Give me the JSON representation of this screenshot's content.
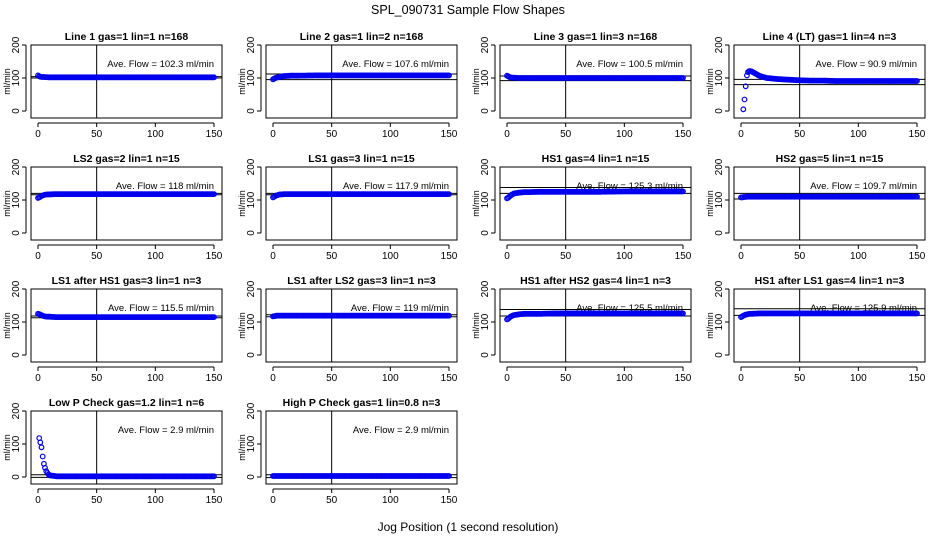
{
  "title": "SPL_090731  Sample Flow Shapes",
  "xlabel": "Jog Position (1 second resolution)",
  "colors": {
    "points": "#0000ee",
    "lines": "#000000"
  },
  "chart_data": [
    {
      "type": "scatter",
      "title": "Line 1 gas=1 lin=1 n=168",
      "annotation": "Ave. Flow =  102.3  ml/min",
      "ylabel": "ml/min",
      "xlim": [
        0,
        150
      ],
      "ylim": [
        0,
        200
      ],
      "xticks": [
        0,
        50,
        100,
        150
      ],
      "yticks": [
        0,
        100,
        200
      ],
      "mean": 102.3,
      "vline": 50,
      "band": [
        100,
        104
      ],
      "series": [
        {
          "name": "flow",
          "x": [
            0,
            1,
            2,
            3,
            4,
            5,
            10,
            20,
            40,
            60,
            80,
            100,
            120,
            140,
            150
          ],
          "y": [
            108,
            105,
            104,
            103,
            103,
            103,
            102,
            102,
            102,
            102,
            102,
            102,
            102,
            102,
            102
          ]
        }
      ]
    },
    {
      "type": "scatter",
      "title": "Line 2 gas=1 lin=2 n=168",
      "annotation": "Ave. Flow =  107.6  ml/min",
      "ylabel": "ml/min",
      "xlim": [
        0,
        150
      ],
      "ylim": [
        0,
        200
      ],
      "xticks": [
        0,
        50,
        100,
        150
      ],
      "yticks": [
        0,
        100,
        200
      ],
      "mean": 107.6,
      "vline": 50,
      "band": [
        95,
        112
      ],
      "series": [
        {
          "name": "flow",
          "x": [
            0,
            1,
            2,
            3,
            4,
            5,
            6,
            8,
            10,
            15,
            20,
            40,
            60,
            80,
            100,
            120,
            140,
            150
          ],
          "y": [
            96,
            98,
            100,
            101,
            102,
            103,
            104,
            105,
            106,
            107,
            107,
            108,
            108,
            108,
            108,
            108,
            108,
            108
          ]
        }
      ]
    },
    {
      "type": "scatter",
      "title": "Line 3 gas=1 lin=3 n=168",
      "annotation": "Ave. Flow =  100.5  ml/min",
      "ylabel": "ml/min",
      "xlim": [
        0,
        150
      ],
      "ylim": [
        0,
        200
      ],
      "xticks": [
        0,
        50,
        100,
        150
      ],
      "yticks": [
        0,
        100,
        200
      ],
      "mean": 100.5,
      "vline": 50,
      "band": [
        92,
        106
      ],
      "series": [
        {
          "name": "flow",
          "x": [
            0,
            1,
            2,
            3,
            4,
            5,
            10,
            20,
            40,
            60,
            80,
            100,
            120,
            140,
            150
          ],
          "y": [
            107,
            105,
            103,
            102,
            101,
            101,
            100,
            100,
            100,
            100,
            100,
            100,
            100,
            100,
            100
          ]
        }
      ]
    },
    {
      "type": "scatter",
      "title": "Line 4 (LT) gas=1 lin=4 n=3",
      "annotation": "Ave. Flow =  90.9  ml/min",
      "ylabel": "ml/min",
      "xlim": [
        0,
        150
      ],
      "ylim": [
        0,
        200
      ],
      "xticks": [
        0,
        50,
        100,
        150
      ],
      "yticks": [
        0,
        100,
        200
      ],
      "mean": 90.9,
      "vline": 50,
      "band": [
        80,
        96
      ],
      "series": [
        {
          "name": "flow",
          "x": [
            2,
            3,
            4,
            5,
            6,
            7,
            8,
            9,
            10,
            11,
            12,
            13,
            14,
            15,
            16,
            18,
            20,
            22,
            25,
            28,
            31,
            35,
            40,
            45,
            50,
            60,
            70,
            80,
            90,
            100,
            110,
            120,
            130,
            140,
            150
          ],
          "y": [
            5,
            35,
            75,
            108,
            118,
            121,
            121,
            120,
            118,
            116,
            114,
            112,
            110,
            108,
            106,
            104,
            102,
            100,
            99,
            98,
            97,
            96,
            95,
            94,
            93,
            92,
            92,
            91,
            91,
            91,
            91,
            91,
            91,
            91,
            91
          ]
        }
      ]
    },
    {
      "type": "scatter",
      "title": "LS2 gas=2 lin=1 n=15",
      "annotation": "Ave. Flow =  118  ml/min",
      "ylabel": "ml/min",
      "xlim": [
        0,
        150
      ],
      "ylim": [
        0,
        200
      ],
      "xticks": [
        0,
        50,
        100,
        150
      ],
      "yticks": [
        0,
        100,
        200
      ],
      "mean": 118,
      "vline": 50,
      "band": [
        116,
        120
      ],
      "series": [
        {
          "name": "flow",
          "x": [
            0,
            1,
            2,
            3,
            4,
            5,
            6,
            8,
            10,
            15,
            20,
            40,
            60,
            80,
            100,
            120,
            140,
            150
          ],
          "y": [
            106,
            108,
            110,
            112,
            114,
            115,
            116,
            117,
            117,
            118,
            118,
            118,
            118,
            118,
            118,
            118,
            118,
            118
          ]
        }
      ]
    },
    {
      "type": "scatter",
      "title": "LS1 gas=3 lin=1 n=15",
      "annotation": "Ave. Flow =  117.9  ml/min",
      "ylabel": "ml/min",
      "xlim": [
        0,
        150
      ],
      "ylim": [
        0,
        200
      ],
      "xticks": [
        0,
        50,
        100,
        150
      ],
      "yticks": [
        0,
        100,
        200
      ],
      "mean": 117.9,
      "vline": 50,
      "band": [
        116,
        120
      ],
      "series": [
        {
          "name": "flow",
          "x": [
            0,
            1,
            2,
            3,
            4,
            5,
            6,
            8,
            10,
            15,
            20,
            40,
            60,
            80,
            100,
            120,
            140,
            150
          ],
          "y": [
            108,
            110,
            112,
            114,
            115,
            116,
            117,
            117,
            118,
            118,
            118,
            118,
            118,
            118,
            118,
            118,
            118,
            118
          ]
        }
      ]
    },
    {
      "type": "scatter",
      "title": "HS1 gas=4 lin=1 n=15",
      "annotation": "Ave. Flow =  125.3  ml/min",
      "ylabel": "ml/min",
      "xlim": [
        0,
        150
      ],
      "ylim": [
        0,
        200
      ],
      "xticks": [
        0,
        50,
        100,
        150
      ],
      "yticks": [
        0,
        100,
        200
      ],
      "mean": 125.3,
      "vline": 50,
      "band": [
        120,
        138
      ],
      "series": [
        {
          "name": "flow",
          "x": [
            0,
            1,
            2,
            3,
            4,
            5,
            6,
            8,
            10,
            12,
            15,
            20,
            30,
            40,
            60,
            80,
            100,
            120,
            140,
            150
          ],
          "y": [
            105,
            107,
            110,
            113,
            116,
            118,
            120,
            121,
            122,
            123,
            124,
            124,
            125,
            125,
            125,
            125,
            126,
            126,
            126,
            126
          ]
        }
      ]
    },
    {
      "type": "scatter",
      "title": "HS2 gas=5 lin=1 n=15",
      "annotation": "Ave. Flow =  109.7  ml/min",
      "ylabel": "ml/min",
      "xlim": [
        0,
        150
      ],
      "ylim": [
        0,
        200
      ],
      "xticks": [
        0,
        50,
        100,
        150
      ],
      "yticks": [
        0,
        100,
        200
      ],
      "mean": 109.7,
      "vline": 50,
      "band": [
        103,
        120
      ],
      "series": [
        {
          "name": "flow",
          "x": [
            0,
            1,
            2,
            3,
            4,
            5,
            6,
            8,
            10,
            15,
            20,
            40,
            60,
            80,
            100,
            120,
            140,
            150
          ],
          "y": [
            108,
            108,
            109,
            109,
            109,
            110,
            110,
            110,
            110,
            110,
            110,
            110,
            110,
            110,
            110,
            110,
            110,
            110
          ]
        }
      ]
    },
    {
      "type": "scatter",
      "title": "LS1 after HS1 gas=3 lin=1 n=3",
      "annotation": "Ave. Flow =  115.5  ml/min",
      "ylabel": "ml/min",
      "xlim": [
        0,
        150
      ],
      "ylim": [
        0,
        200
      ],
      "xticks": [
        0,
        50,
        100,
        150
      ],
      "yticks": [
        0,
        100,
        200
      ],
      "mean": 115.5,
      "vline": 50,
      "band": [
        113,
        118
      ],
      "series": [
        {
          "name": "flow",
          "x": [
            0,
            1,
            2,
            3,
            4,
            5,
            6,
            8,
            10,
            15,
            20,
            40,
            60,
            80,
            100,
            120,
            140,
            150
          ],
          "y": [
            125,
            124,
            122,
            121,
            119,
            118,
            117,
            116,
            116,
            115,
            115,
            115,
            115,
            115,
            115,
            115,
            115,
            115
          ]
        }
      ]
    },
    {
      "type": "scatter",
      "title": "LS1 after LS2 gas=3 lin=1 n=3",
      "annotation": "Ave. Flow =  119  ml/min",
      "ylabel": "ml/min",
      "xlim": [
        0,
        150
      ],
      "ylim": [
        0,
        200
      ],
      "xticks": [
        0,
        50,
        100,
        150
      ],
      "yticks": [
        0,
        100,
        200
      ],
      "mean": 119,
      "vline": 50,
      "band": [
        116,
        122
      ],
      "series": [
        {
          "name": "flow",
          "x": [
            0,
            1,
            2,
            3,
            4,
            5,
            10,
            20,
            40,
            60,
            80,
            100,
            120,
            140,
            150
          ],
          "y": [
            117,
            118,
            118,
            119,
            119,
            119,
            119,
            119,
            119,
            119,
            119,
            119,
            119,
            119,
            119
          ]
        }
      ]
    },
    {
      "type": "scatter",
      "title": "HS1 after HS2 gas=4 lin=1 n=3",
      "annotation": "Ave. Flow =  125.5  ml/min",
      "ylabel": "ml/min",
      "xlim": [
        0,
        150
      ],
      "ylim": [
        0,
        200
      ],
      "xticks": [
        0,
        50,
        100,
        150
      ],
      "yticks": [
        0,
        100,
        200
      ],
      "mean": 125.5,
      "vline": 50,
      "band": [
        118,
        138
      ],
      "series": [
        {
          "name": "flow",
          "x": [
            0,
            1,
            2,
            3,
            4,
            5,
            6,
            8,
            10,
            12,
            15,
            20,
            30,
            40,
            60,
            80,
            100,
            120,
            140,
            150
          ],
          "y": [
            108,
            110,
            113,
            116,
            118,
            120,
            121,
            122,
            123,
            124,
            125,
            125,
            125,
            126,
            126,
            126,
            126,
            126,
            126,
            126
          ]
        }
      ]
    },
    {
      "type": "scatter",
      "title": "HS1 after LS1 gas=4 lin=1 n=3",
      "annotation": "Ave. Flow =  125.9  ml/min",
      "ylabel": "ml/min",
      "xlim": [
        0,
        150
      ],
      "ylim": [
        0,
        200
      ],
      "xticks": [
        0,
        50,
        100,
        150
      ],
      "yticks": [
        0,
        100,
        200
      ],
      "mean": 125.9,
      "vline": 50,
      "band": [
        120,
        140
      ],
      "series": [
        {
          "name": "flow",
          "x": [
            0,
            1,
            2,
            3,
            4,
            5,
            6,
            8,
            10,
            15,
            20,
            40,
            60,
            80,
            100,
            120,
            140,
            150
          ],
          "y": [
            115,
            117,
            119,
            121,
            122,
            123,
            124,
            125,
            125,
            126,
            126,
            126,
            126,
            126,
            126,
            126,
            126,
            126
          ]
        }
      ]
    },
    {
      "type": "scatter",
      "title": "Low P Check gas=1.2 lin=1 n=6",
      "annotation": "Ave. Flow =  2.9  ml/min",
      "ylabel": "ml/min",
      "xlim": [
        0,
        150
      ],
      "ylim": [
        0,
        200
      ],
      "xticks": [
        0,
        50,
        100,
        150
      ],
      "yticks": [
        0,
        100,
        200
      ],
      "mean": 2.9,
      "vline": 50,
      "band": [
        -1,
        7
      ],
      "series": [
        {
          "name": "flow",
          "x": [
            1,
            2,
            3,
            4,
            5,
            6,
            7,
            8,
            9,
            10,
            12,
            14,
            16,
            20,
            30,
            40,
            60,
            80,
            100,
            120,
            140,
            150
          ],
          "y": [
            118,
            105,
            90,
            62,
            40,
            28,
            18,
            12,
            8,
            5,
            4,
            3,
            2,
            2,
            2,
            2,
            2,
            2,
            2,
            2,
            2,
            2
          ]
        }
      ]
    },
    {
      "type": "scatter",
      "title": "High P Check gas=1 lin=0.8 n=3",
      "annotation": "Ave. Flow =  2.9  ml/min",
      "ylabel": "ml/min",
      "xlim": [
        0,
        150
      ],
      "ylim": [
        0,
        200
      ],
      "xticks": [
        0,
        50,
        100,
        150
      ],
      "yticks": [
        0,
        100,
        200
      ],
      "mean": 2.9,
      "vline": 50,
      "band": [
        -2,
        7
      ],
      "series": [
        {
          "name": "flow",
          "x": [
            0,
            1,
            2,
            3,
            4,
            5,
            10,
            20,
            40,
            60,
            80,
            100,
            120,
            140,
            150
          ],
          "y": [
            3,
            3,
            3,
            3,
            3,
            3,
            3,
            3,
            3,
            3,
            3,
            3,
            3,
            3,
            3
          ]
        }
      ]
    }
  ]
}
